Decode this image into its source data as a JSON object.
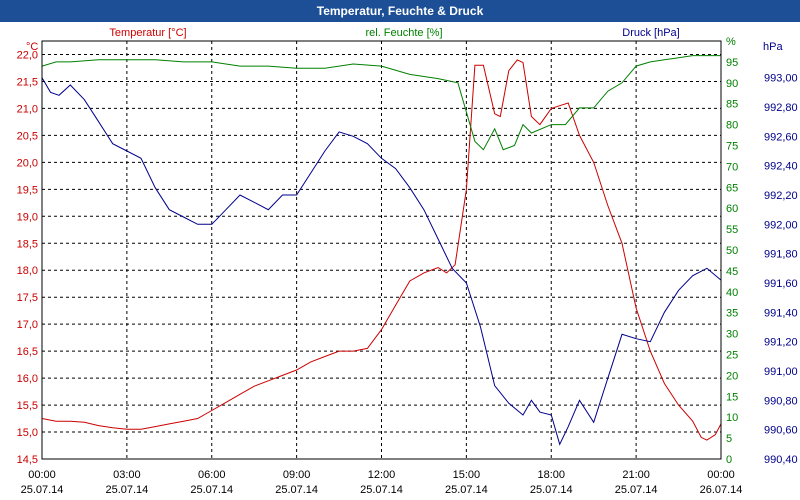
{
  "window": {
    "title": "Temperatur, Feuchte & Druck"
  },
  "chart_data": {
    "type": "line",
    "title": "Temperatur, Feuchte & Druck",
    "x": {
      "range_hours": [
        0,
        24
      ],
      "ticks": [
        {
          "h": 0,
          "time": "00:00",
          "date": "25.07.14"
        },
        {
          "h": 3,
          "time": "03:00",
          "date": "25.07.14"
        },
        {
          "h": 6,
          "time": "06:00",
          "date": "25.07.14"
        },
        {
          "h": 9,
          "time": "09:00",
          "date": "25.07.14"
        },
        {
          "h": 12,
          "time": "12:00",
          "date": "25.07.14"
        },
        {
          "h": 15,
          "time": "15:00",
          "date": "25.07.14"
        },
        {
          "h": 18,
          "time": "18:00",
          "date": "25.07.14"
        },
        {
          "h": 21,
          "time": "21:00",
          "date": "25.07.14"
        },
        {
          "h": 24,
          "time": "00:00",
          "date": "26.07.14"
        }
      ]
    },
    "axes": {
      "temperature": {
        "unit": "°C",
        "label": "Temperatur [°C]",
        "range": [
          14.5,
          22.25
        ],
        "color": "#cc0000",
        "ticks": [
          "14,5",
          "15,0",
          "15,5",
          "16,0",
          "16,5",
          "17,0",
          "17,5",
          "18,0",
          "18,5",
          "19,0",
          "19,5",
          "20,0",
          "20,5",
          "21,0",
          "21,5",
          "22,0"
        ],
        "tick_values": [
          14.5,
          15.0,
          15.5,
          16.0,
          16.5,
          17.0,
          17.5,
          18.0,
          18.5,
          19.0,
          19.5,
          20.0,
          20.5,
          21.0,
          21.5,
          22.0
        ]
      },
      "humidity": {
        "unit": "%",
        "label": "rel. Feuchte [%]",
        "range": [
          0,
          100
        ],
        "color": "#008000",
        "ticks": [
          "0",
          "5",
          "10",
          "15",
          "20",
          "25",
          "30",
          "35",
          "40",
          "45",
          "50",
          "55",
          "60",
          "65",
          "70",
          "75",
          "80",
          "85",
          "90",
          "95",
          "%"
        ],
        "tick_values": [
          0,
          5,
          10,
          15,
          20,
          25,
          30,
          35,
          40,
          45,
          50,
          55,
          60,
          65,
          70,
          75,
          80,
          85,
          90,
          95,
          100
        ]
      },
      "pressure": {
        "unit": "hPa",
        "label": "Druck [hPa]",
        "range": [
          990.4,
          993.25
        ],
        "color": "#00008b",
        "ticks": [
          "990,40",
          "990,60",
          "990,80",
          "991,00",
          "991,20",
          "991,40",
          "991,60",
          "991,80",
          "992,00",
          "992,20",
          "992,40",
          "992,60",
          "992,80",
          "993,00"
        ],
        "tick_values": [
          990.4,
          990.6,
          990.8,
          991.0,
          991.2,
          991.4,
          991.6,
          991.8,
          992.0,
          992.2,
          992.4,
          992.6,
          992.8,
          993.0
        ]
      }
    },
    "series": [
      {
        "name": "Temperatur",
        "axis": "temperature",
        "color": "#cc0000",
        "points": [
          [
            0,
            15.25
          ],
          [
            0.5,
            15.2
          ],
          [
            1,
            15.2
          ],
          [
            1.5,
            15.18
          ],
          [
            2,
            15.12
          ],
          [
            2.5,
            15.08
          ],
          [
            3,
            15.05
          ],
          [
            3.5,
            15.05
          ],
          [
            4,
            15.1
          ],
          [
            4.5,
            15.15
          ],
          [
            5,
            15.2
          ],
          [
            5.5,
            15.25
          ],
          [
            6,
            15.4
          ],
          [
            6.5,
            15.55
          ],
          [
            7,
            15.7
          ],
          [
            7.5,
            15.85
          ],
          [
            8,
            15.95
          ],
          [
            8.5,
            16.05
          ],
          [
            9,
            16.15
          ],
          [
            9.5,
            16.3
          ],
          [
            10,
            16.4
          ],
          [
            10.5,
            16.5
          ],
          [
            11,
            16.5
          ],
          [
            11.5,
            16.55
          ],
          [
            12,
            16.9
          ],
          [
            12.5,
            17.35
          ],
          [
            13,
            17.8
          ],
          [
            13.5,
            17.95
          ],
          [
            14,
            18.05
          ],
          [
            14.3,
            17.95
          ],
          [
            14.6,
            18.1
          ],
          [
            15,
            19.5
          ],
          [
            15.3,
            21.8
          ],
          [
            15.6,
            21.8
          ],
          [
            16,
            20.9
          ],
          [
            16.2,
            20.85
          ],
          [
            16.5,
            21.7
          ],
          [
            16.8,
            21.9
          ],
          [
            17,
            21.85
          ],
          [
            17.3,
            20.85
          ],
          [
            17.6,
            20.7
          ],
          [
            18,
            21.0
          ],
          [
            18.3,
            21.05
          ],
          [
            18.6,
            21.1
          ],
          [
            19,
            20.5
          ],
          [
            19.5,
            20.0
          ],
          [
            20,
            19.2
          ],
          [
            20.5,
            18.5
          ],
          [
            21,
            17.3
          ],
          [
            21.5,
            16.5
          ],
          [
            22,
            15.9
          ],
          [
            22.5,
            15.5
          ],
          [
            23,
            15.2
          ],
          [
            23.3,
            14.9
          ],
          [
            23.5,
            14.85
          ],
          [
            23.8,
            14.95
          ],
          [
            24,
            15.15
          ]
        ]
      },
      {
        "name": "rel. Feuchte",
        "axis": "humidity",
        "color": "#008000",
        "points": [
          [
            0,
            94
          ],
          [
            0.5,
            95
          ],
          [
            1,
            95
          ],
          [
            2,
            95.5
          ],
          [
            3,
            95.5
          ],
          [
            4,
            95.5
          ],
          [
            5,
            95
          ],
          [
            6,
            95
          ],
          [
            7,
            94
          ],
          [
            8,
            94
          ],
          [
            9,
            93.5
          ],
          [
            10,
            93.5
          ],
          [
            11,
            94.5
          ],
          [
            12,
            94
          ],
          [
            13,
            92
          ],
          [
            14,
            91
          ],
          [
            14.7,
            90
          ],
          [
            15,
            83
          ],
          [
            15.3,
            76
          ],
          [
            15.6,
            74
          ],
          [
            16,
            79
          ],
          [
            16.3,
            74
          ],
          [
            16.7,
            75
          ],
          [
            17,
            80
          ],
          [
            17.3,
            78
          ],
          [
            18,
            80
          ],
          [
            18.5,
            80
          ],
          [
            19,
            84
          ],
          [
            19.5,
            84
          ],
          [
            20,
            88
          ],
          [
            20.5,
            90
          ],
          [
            21,
            94
          ],
          [
            21.5,
            95
          ],
          [
            22,
            95.5
          ],
          [
            22.5,
            96
          ],
          [
            23,
            96.5
          ],
          [
            24,
            96.5
          ]
        ]
      },
      {
        "name": "Druck",
        "axis": "pressure",
        "color": "#00008b",
        "points": [
          [
            0,
            993.0
          ],
          [
            0.3,
            992.9
          ],
          [
            0.6,
            992.88
          ],
          [
            1,
            992.95
          ],
          [
            1.5,
            992.85
          ],
          [
            2,
            992.7
          ],
          [
            2.5,
            992.55
          ],
          [
            3,
            992.5
          ],
          [
            3.5,
            992.45
          ],
          [
            4,
            992.25
          ],
          [
            4.5,
            992.1
          ],
          [
            5,
            992.05
          ],
          [
            5.5,
            992.0
          ],
          [
            6,
            992.0
          ],
          [
            6.5,
            992.1
          ],
          [
            7,
            992.2
          ],
          [
            7.5,
            992.15
          ],
          [
            8,
            992.1
          ],
          [
            8.5,
            992.2
          ],
          [
            9,
            992.2
          ],
          [
            9.5,
            992.35
          ],
          [
            10,
            992.5
          ],
          [
            10.5,
            992.63
          ],
          [
            11,
            992.6
          ],
          [
            11.5,
            992.55
          ],
          [
            12,
            992.45
          ],
          [
            12.5,
            992.38
          ],
          [
            13,
            992.25
          ],
          [
            13.5,
            992.1
          ],
          [
            14,
            991.9
          ],
          [
            14.5,
            991.7
          ],
          [
            15,
            991.6
          ],
          [
            15.5,
            991.3
          ],
          [
            16,
            990.9
          ],
          [
            16.5,
            990.78
          ],
          [
            17,
            990.7
          ],
          [
            17.3,
            990.8
          ],
          [
            17.6,
            990.72
          ],
          [
            18,
            990.7
          ],
          [
            18.3,
            990.5
          ],
          [
            18.6,
            990.62
          ],
          [
            19,
            990.8
          ],
          [
            19.5,
            990.65
          ],
          [
            20,
            990.95
          ],
          [
            20.5,
            991.25
          ],
          [
            21,
            991.22
          ],
          [
            21.5,
            991.2
          ],
          [
            22,
            991.4
          ],
          [
            22.5,
            991.55
          ],
          [
            23,
            991.65
          ],
          [
            23.5,
            991.7
          ],
          [
            24,
            991.62
          ]
        ]
      }
    ],
    "grid": true
  }
}
